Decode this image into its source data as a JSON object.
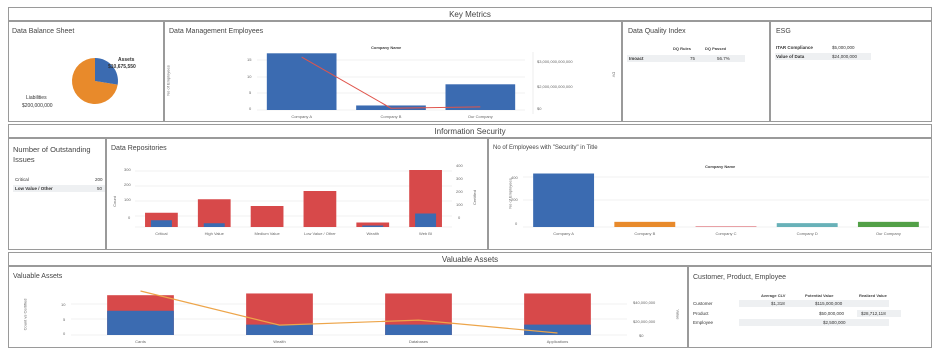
{
  "colors": {
    "blue": "#3b6bb1",
    "red": "#d7494a",
    "orange": "#e88a2b",
    "teal": "#68b1b8",
    "green": "#52a047",
    "pink": "#e8a1a6",
    "line_red": "#e0554c",
    "line_orange": "#eda54a",
    "grid": "#e3e3e3",
    "border": "#9a9a9a"
  },
  "headers": {
    "key_metrics": "Key Metrics",
    "information_security": "Information Security",
    "valuable_assets": "Valuable Assets"
  },
  "balance_sheet": {
    "title": "Data Balance Sheet",
    "assets_label": "Assets",
    "assets_value": "$10,675,550",
    "liabilities_label": "Liabilities",
    "liabilities_value": "$200,000,000"
  },
  "dme": {
    "title": "Data Management Employees",
    "company_header": "Company Name",
    "ylabel": "No of Employees",
    "right_axis_label": "DV",
    "right_ticks": [
      "$3,000,000,000,000",
      "$2,000,000,000,000",
      "$0"
    ],
    "left_ticks": [
      "15",
      "10",
      "5",
      "0"
    ]
  },
  "dqi": {
    "title": "Data Quality Index",
    "col1": "DQ Rules",
    "col2": "DQ Passed",
    "row_label": "Imoact",
    "val1": "75",
    "val2": "56.7%"
  },
  "esg": {
    "title": "ESG",
    "row1_label": "ITAR Compliance",
    "row1_value": "$5,000,000",
    "row2_label": "Value of Data",
    "row2_value": "$24,000,000"
  },
  "issues": {
    "title": "Number of Outstanding Issues",
    "rows": [
      {
        "label": "Critical",
        "value": "200"
      },
      {
        "label": "Low Value / Other",
        "value": "50"
      }
    ]
  },
  "repos": {
    "title": "Data Repositories",
    "ylabel_left": "Count",
    "ylabel_right": "Certified",
    "left_ticks": [
      "300",
      "200",
      "100",
      "0"
    ],
    "right_ticks": [
      "400",
      "300",
      "200",
      "100",
      "0"
    ]
  },
  "security": {
    "title": "No of Employees with \"Security\" in Title",
    "company_header": "Company Name",
    "ylabel": "No of Employees",
    "ticks": [
      "400",
      "200",
      "0"
    ]
  },
  "valuable": {
    "title": "Valuable Assets",
    "ylabel": "Count vs Certified",
    "right_label": "Value",
    "left_ticks": [
      "10",
      "5",
      "0"
    ],
    "right_ticks": [
      "$40,000,000",
      "$20,000,000",
      "$0"
    ]
  },
  "cpe": {
    "title": "Customer, Product, Employee",
    "col1": "Average CLV",
    "col2": "Potential Value",
    "col3": "Realized Value",
    "rows": [
      {
        "label": "Customer",
        "v1": "$1,318",
        "v2": "$115,000,000",
        "v3": ""
      },
      {
        "label": "Product",
        "v1": "",
        "v2": "$50,000,000",
        "v3": "$28,712,118"
      },
      {
        "label": "Employee",
        "v1": "",
        "v2": "$2,500,000",
        "v3": ""
      }
    ]
  },
  "chart_data": [
    {
      "type": "pie",
      "labels": [
        "Assets",
        "Liabilities"
      ],
      "values": [
        10675550,
        200000000
      ],
      "colors": [
        "#3b6bb1",
        "#e88a2b"
      ]
    },
    {
      "type": "bar",
      "title": "Data Management Employees",
      "categories": [
        "Company A",
        "Company B",
        "Our Company"
      ],
      "series": [
        {
          "values": [
            15,
            1.2,
            6.8
          ]
        }
      ],
      "line_values": [
        3000000000000,
        100000000000,
        180000000000
      ],
      "ylabel": "No of Employees",
      "ylim": [
        0,
        16
      ]
    },
    {
      "type": "bar",
      "title": "Data Repositories",
      "categories": [
        "Critical",
        "High Value",
        "Medium Value",
        "Low Value / Other",
        "Wealth",
        "Web BI"
      ],
      "series": [
        {
          "name": "Count",
          "values": [
            95,
            185,
            140,
            240,
            30,
            380
          ]
        },
        {
          "name": "Certified",
          "values": [
            45,
            25,
            0,
            0,
            10,
            90
          ]
        }
      ],
      "ylabel": "Count",
      "ylim": [
        0,
        400
      ]
    },
    {
      "type": "bar",
      "title": "No of Employees with \"Security\" in Title",
      "categories": [
        "Company A",
        "Company B",
        "Company C",
        "Company D",
        "Our Company"
      ],
      "values": [
        415,
        40,
        5,
        30,
        40
      ],
      "ylabel": "No of Employees",
      "ylim": [
        0,
        450
      ]
    },
    {
      "type": "bar",
      "title": "Valuable Assets",
      "categories": [
        "Cards",
        "Wealth",
        "Databases",
        "Applications"
      ],
      "series": [
        {
          "name": "Count",
          "values": [
            11.5,
            12,
            12,
            12
          ]
        },
        {
          "name": "Certified",
          "values": [
            7,
            3,
            3,
            3
          ]
        }
      ],
      "line_values": [
        49000000,
        10000000,
        15000000,
        2000000
      ],
      "ylabel": "Count vs Certified",
      "ylim": [
        0,
        13
      ]
    }
  ]
}
